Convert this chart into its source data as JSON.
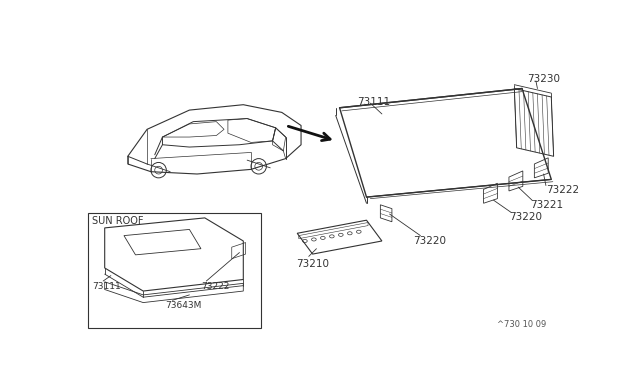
{
  "bg_color": "#ffffff",
  "part_number_code": "^730 10 09",
  "sun_roof_label": "SUN ROOF",
  "parts": {
    "73111": "73111",
    "73210": "73210",
    "73220a": "73220",
    "73220b": "73220",
    "73221": "73221",
    "73222a": "73222",
    "73222b": "73222",
    "73230": "73230",
    "73643M": "73643M"
  },
  "line_color": "#333333",
  "font_size": 7.5
}
